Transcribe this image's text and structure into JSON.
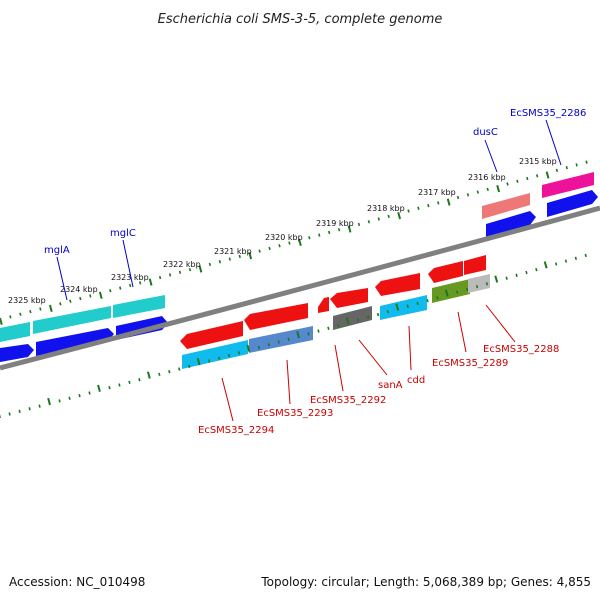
{
  "title": "Escherichia coli SMS-3-5, complete genome",
  "footer": {
    "accession": "Accession: NC_010498",
    "topology": "Topology: circular; Length: 5,068,389 bp; Genes: 4,855"
  },
  "scale_labels": [
    "2325 kbp",
    "2324 kbp",
    "2323 kbp",
    "2322 kbp",
    "2321 kbp",
    "2320 kbp",
    "2319 kbp",
    "2318 kbp",
    "2317 kbp",
    "2316 kbp",
    "2315 kbp"
  ],
  "colors": {
    "backbone": "#808080",
    "tick": "#1a7a1a",
    "forward_label": "#0000cc",
    "reverse_label": "#cc0000",
    "red": "#ee1111",
    "cyan": "#11bbee",
    "teal": "#22cccc",
    "blue": "#1111ee",
    "magenta": "#ee1199",
    "salmon": "#ee7777",
    "gray": "#666666",
    "steel": "#5588cc",
    "olive": "#669922",
    "lightgray": "#bbbbbb"
  },
  "gene_labels": [
    {
      "text": "mglA",
      "strand": "forward"
    },
    {
      "text": "mglC",
      "strand": "forward"
    },
    {
      "text": "dusC",
      "strand": "forward"
    },
    {
      "text": "EcSMS35_2286",
      "strand": "forward"
    },
    {
      "text": "EcSMS35_2294",
      "strand": "reverse"
    },
    {
      "text": "EcSMS35_2293",
      "strand": "reverse"
    },
    {
      "text": "EcSMS35_2292",
      "strand": "reverse"
    },
    {
      "text": "sanA",
      "strand": "reverse"
    },
    {
      "text": "cdd",
      "strand": "reverse"
    },
    {
      "text": "EcSMS35_2289",
      "strand": "reverse"
    },
    {
      "text": "EcSMS35_2288",
      "strand": "reverse"
    }
  ]
}
